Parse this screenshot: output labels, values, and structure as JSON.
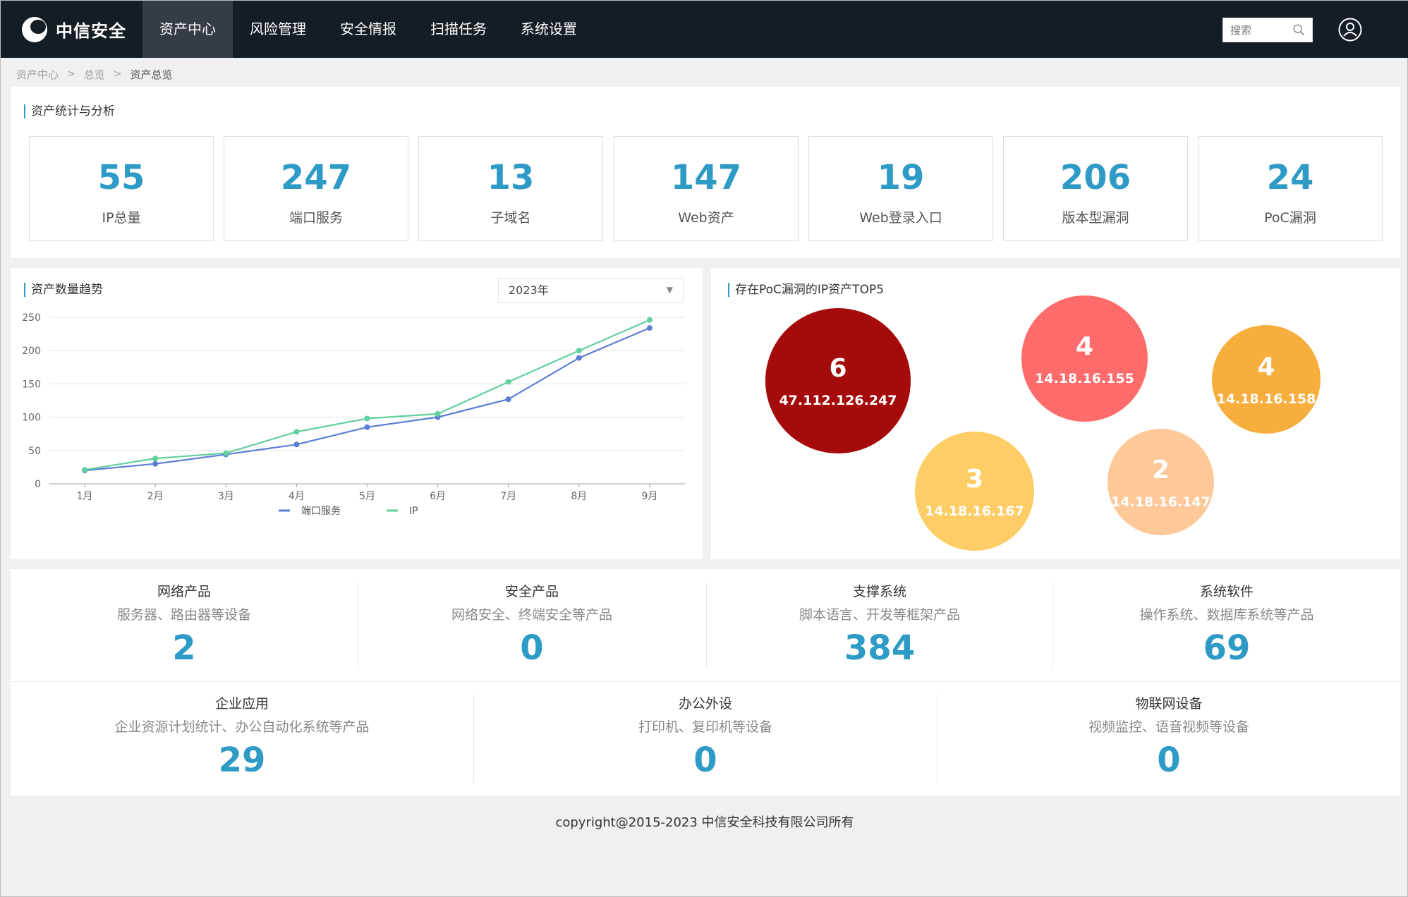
{
  "nav": {
    "brand": "中信安全",
    "items": [
      "资产中心",
      "风险管理",
      "安全情报",
      "扫描任务",
      "系统设置"
    ],
    "search_placeholder": "搜索"
  },
  "breadcrumb": [
    "资产中心",
    "总览",
    "资产总览"
  ],
  "stats": {
    "title": "资产统计与分析",
    "cards": [
      {
        "value": "55",
        "label": "IP总量"
      },
      {
        "value": "247",
        "label": "端口服务"
      },
      {
        "value": "13",
        "label": "子域名"
      },
      {
        "value": "147",
        "label": "Web资产"
      },
      {
        "value": "19",
        "label": "Web登录入口"
      },
      {
        "value": "206",
        "label": "版本型漏洞"
      },
      {
        "value": "24",
        "label": "PoC漏洞"
      }
    ]
  },
  "trend": {
    "title": "资产数量趋势",
    "year": "2023年"
  },
  "chart_data": {
    "type": "line",
    "categories": [
      "1月",
      "2月",
      "3月",
      "4月",
      "5月",
      "6月",
      "7月",
      "8月",
      "9月"
    ],
    "series": [
      {
        "name": "端口服务",
        "color": "#5b7fd6",
        "values": [
          20,
          30,
          44,
          59,
          85,
          100,
          127,
          189,
          234
        ]
      },
      {
        "name": "IP",
        "color": "#62d09e",
        "values": [
          21,
          38,
          46,
          78,
          98,
          105,
          153,
          200,
          246
        ]
      }
    ],
    "ylim": [
      0,
      250
    ],
    "yticks": [
      0,
      50,
      100,
      150,
      200,
      250
    ],
    "grid": true,
    "legend": "bottom"
  },
  "poc": {
    "title": "存在PoC漏洞的IP资产TOP5",
    "bubbles": [
      {
        "count": "6",
        "ip": "47.112.126.247",
        "color": "#a50b0b"
      },
      {
        "count": "4",
        "ip": "14.18.16.155",
        "color": "#fe6b6b"
      },
      {
        "count": "4",
        "ip": "14.18.16.158",
        "color": "#f8ae3c"
      },
      {
        "count": "3",
        "ip": "14.18.16.167",
        "color": "#fecd65"
      },
      {
        "count": "2",
        "ip": "14.18.16.147",
        "color": "#ffc898"
      }
    ]
  },
  "categories_row1": [
    {
      "name": "网络产品",
      "desc": "服务器、路由器等设备",
      "count": "2"
    },
    {
      "name": "安全产品",
      "desc": "网络安全、终端安全等产品",
      "count": "0"
    },
    {
      "name": "支撑系统",
      "desc": "脚本语言、开发等框架产品",
      "count": "384"
    },
    {
      "name": "系统软件",
      "desc": "操作系统、数据库系统等产品",
      "count": "69"
    }
  ],
  "categories_row2": [
    {
      "name": "企业应用",
      "desc": "企业资源计划统计、办公自动化系统等产品",
      "count": "29"
    },
    {
      "name": "办公外设",
      "desc": "打印机、复印机等设备",
      "count": "0"
    },
    {
      "name": "物联网设备",
      "desc": "视频监控、语音视频等设备",
      "count": "0"
    }
  ],
  "footer": "copyright@2015-2023 中信安全科技有限公司所有"
}
